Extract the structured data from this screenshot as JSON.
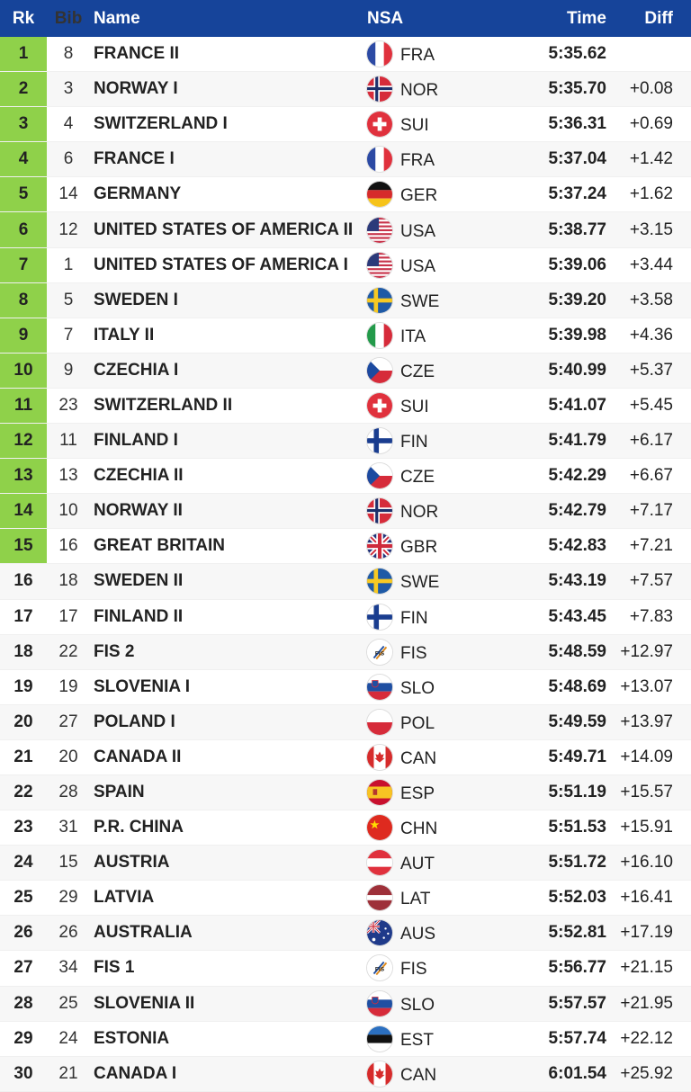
{
  "headers": {
    "rk": "Rk",
    "bib": "Bib",
    "name": "Name",
    "nsa": "NSA",
    "time": "Time",
    "diff": "Diff"
  },
  "colors": {
    "header_bg": "#16449a",
    "qualified": "#8fd14a"
  },
  "rows": [
    {
      "rk": "1",
      "bib": "8",
      "name": "FRANCE II",
      "nsa": "FRA",
      "flag": "france-flag-icon",
      "time": "5:35.62",
      "diff": ""
    },
    {
      "rk": "2",
      "bib": "3",
      "name": "NORWAY I",
      "nsa": "NOR",
      "flag": "norway-flag-icon",
      "time": "5:35.70",
      "diff": "+0.08"
    },
    {
      "rk": "3",
      "bib": "4",
      "name": "SWITZERLAND I",
      "nsa": "SUI",
      "flag": "switzerland-flag-icon",
      "time": "5:36.31",
      "diff": "+0.69"
    },
    {
      "rk": "4",
      "bib": "6",
      "name": "FRANCE I",
      "nsa": "FRA",
      "flag": "france-flag-icon",
      "time": "5:37.04",
      "diff": "+1.42"
    },
    {
      "rk": "5",
      "bib": "14",
      "name": "GERMANY",
      "nsa": "GER",
      "flag": "germany-flag-icon",
      "time": "5:37.24",
      "diff": "+1.62"
    },
    {
      "rk": "6",
      "bib": "12",
      "name": "UNITED STATES OF AMERICA II",
      "nsa": "USA",
      "flag": "usa-flag-icon",
      "time": "5:38.77",
      "diff": "+3.15"
    },
    {
      "rk": "7",
      "bib": "1",
      "name": "UNITED STATES OF AMERICA I",
      "nsa": "USA",
      "flag": "usa-flag-icon",
      "time": "5:39.06",
      "diff": "+3.44"
    },
    {
      "rk": "8",
      "bib": "5",
      "name": "SWEDEN I",
      "nsa": "SWE",
      "flag": "sweden-flag-icon",
      "time": "5:39.20",
      "diff": "+3.58"
    },
    {
      "rk": "9",
      "bib": "7",
      "name": "ITALY II",
      "nsa": "ITA",
      "flag": "italy-flag-icon",
      "time": "5:39.98",
      "diff": "+4.36"
    },
    {
      "rk": "10",
      "bib": "9",
      "name": "CZECHIA I",
      "nsa": "CZE",
      "flag": "czechia-flag-icon",
      "time": "5:40.99",
      "diff": "+5.37"
    },
    {
      "rk": "11",
      "bib": "23",
      "name": "SWITZERLAND II",
      "nsa": "SUI",
      "flag": "switzerland-flag-icon",
      "time": "5:41.07",
      "diff": "+5.45"
    },
    {
      "rk": "12",
      "bib": "11",
      "name": "FINLAND I",
      "nsa": "FIN",
      "flag": "finland-flag-icon",
      "time": "5:41.79",
      "diff": "+6.17"
    },
    {
      "rk": "13",
      "bib": "13",
      "name": "CZECHIA II",
      "nsa": "CZE",
      "flag": "czechia-flag-icon",
      "time": "5:42.29",
      "diff": "+6.67"
    },
    {
      "rk": "14",
      "bib": "10",
      "name": "NORWAY II",
      "nsa": "NOR",
      "flag": "norway-flag-icon",
      "time": "5:42.79",
      "diff": "+7.17"
    },
    {
      "rk": "15",
      "bib": "16",
      "name": "GREAT BRITAIN",
      "nsa": "GBR",
      "flag": "great-britain-flag-icon",
      "time": "5:42.83",
      "diff": "+7.21"
    },
    {
      "rk": "16",
      "bib": "18",
      "name": "SWEDEN II",
      "nsa": "SWE",
      "flag": "sweden-flag-icon",
      "time": "5:43.19",
      "diff": "+7.57"
    },
    {
      "rk": "17",
      "bib": "17",
      "name": "FINLAND II",
      "nsa": "FIN",
      "flag": "finland-flag-icon",
      "time": "5:43.45",
      "diff": "+7.83"
    },
    {
      "rk": "18",
      "bib": "22",
      "name": "FIS 2",
      "nsa": "FIS",
      "flag": "fis-logo-icon",
      "time": "5:48.59",
      "diff": "+12.97"
    },
    {
      "rk": "19",
      "bib": "19",
      "name": "SLOVENIA I",
      "nsa": "SLO",
      "flag": "slovenia-flag-icon",
      "time": "5:48.69",
      "diff": "+13.07"
    },
    {
      "rk": "20",
      "bib": "27",
      "name": "POLAND I",
      "nsa": "POL",
      "flag": "poland-flag-icon",
      "time": "5:49.59",
      "diff": "+13.97"
    },
    {
      "rk": "21",
      "bib": "20",
      "name": "CANADA II",
      "nsa": "CAN",
      "flag": "canada-flag-icon",
      "time": "5:49.71",
      "diff": "+14.09"
    },
    {
      "rk": "22",
      "bib": "28",
      "name": "SPAIN",
      "nsa": "ESP",
      "flag": "spain-flag-icon",
      "time": "5:51.19",
      "diff": "+15.57"
    },
    {
      "rk": "23",
      "bib": "31",
      "name": "P.R. CHINA",
      "nsa": "CHN",
      "flag": "china-flag-icon",
      "time": "5:51.53",
      "diff": "+15.91"
    },
    {
      "rk": "24",
      "bib": "15",
      "name": "AUSTRIA",
      "nsa": "AUT",
      "flag": "austria-flag-icon",
      "time": "5:51.72",
      "diff": "+16.10"
    },
    {
      "rk": "25",
      "bib": "29",
      "name": "LATVIA",
      "nsa": "LAT",
      "flag": "latvia-flag-icon",
      "time": "5:52.03",
      "diff": "+16.41"
    },
    {
      "rk": "26",
      "bib": "26",
      "name": "AUSTRALIA",
      "nsa": "AUS",
      "flag": "australia-flag-icon",
      "time": "5:52.81",
      "diff": "+17.19"
    },
    {
      "rk": "27",
      "bib": "34",
      "name": "FIS 1",
      "nsa": "FIS",
      "flag": "fis-logo-icon",
      "time": "5:56.77",
      "diff": "+21.15"
    },
    {
      "rk": "28",
      "bib": "25",
      "name": "SLOVENIA II",
      "nsa": "SLO",
      "flag": "slovenia-flag-icon",
      "time": "5:57.57",
      "diff": "+21.95"
    },
    {
      "rk": "29",
      "bib": "24",
      "name": "ESTONIA",
      "nsa": "EST",
      "flag": "estonia-flag-icon",
      "time": "5:57.74",
      "diff": "+22.12"
    },
    {
      "rk": "30",
      "bib": "21",
      "name": "CANADA I",
      "nsa": "CAN",
      "flag": "canada-flag-icon",
      "time": "6:01.54",
      "diff": "+25.92"
    }
  ]
}
